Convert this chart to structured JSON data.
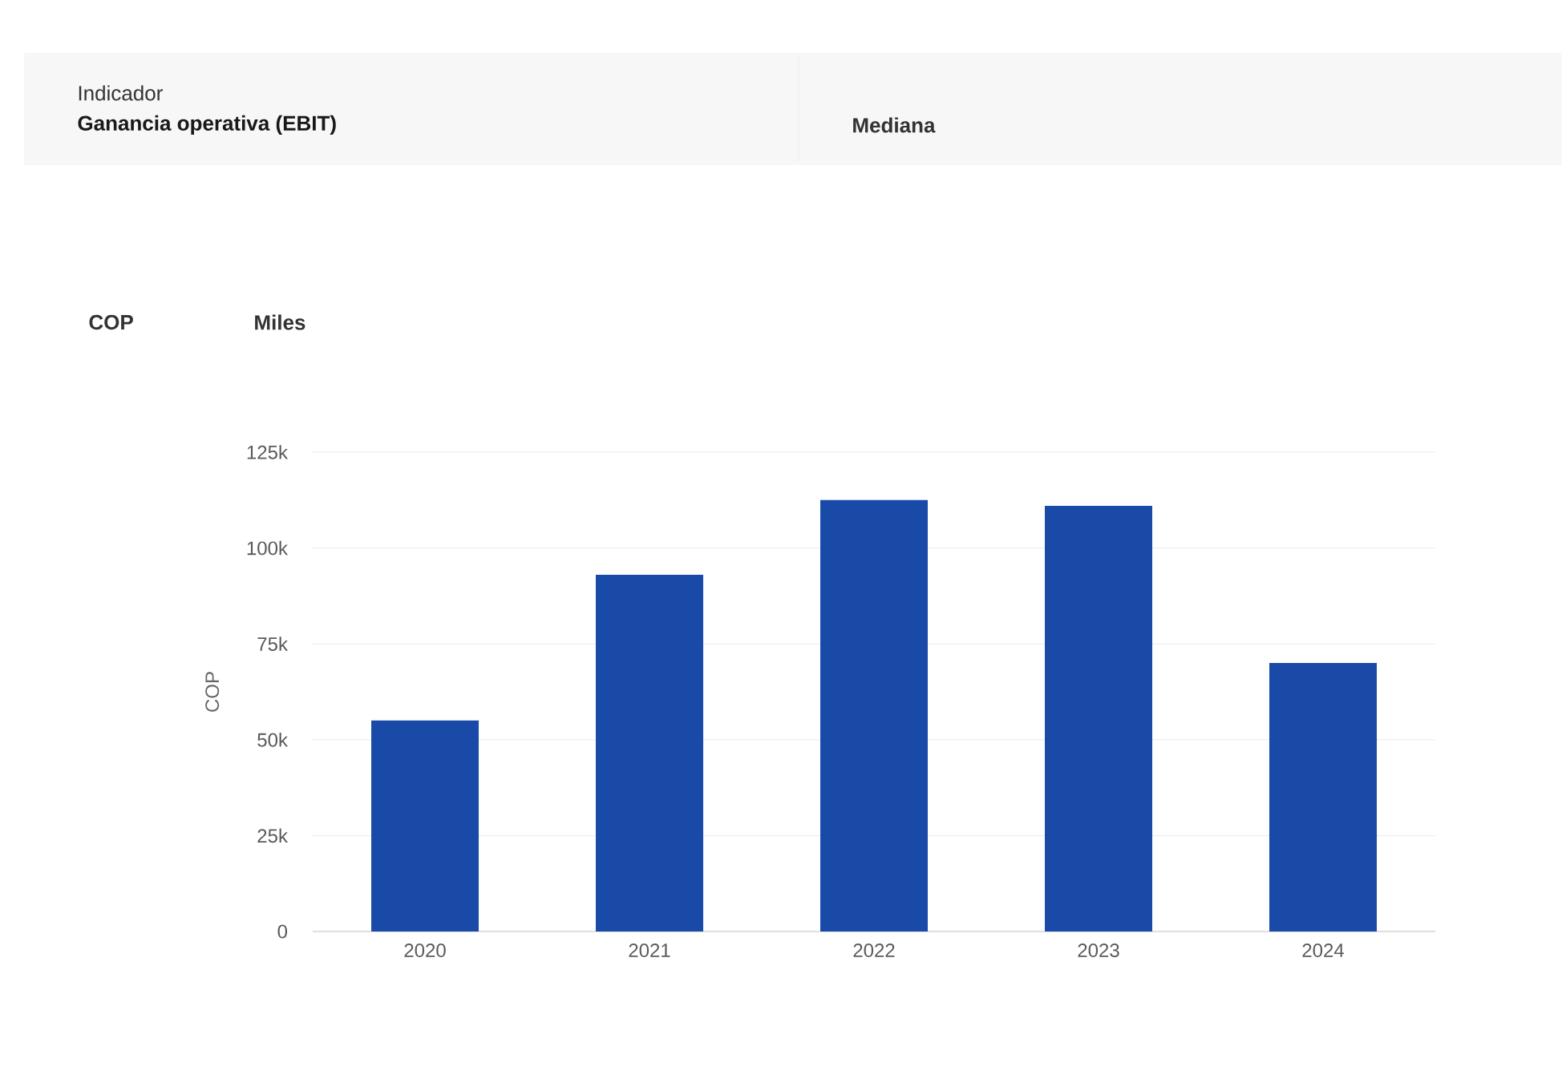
{
  "chart_data": {
    "type": "bar",
    "title": "Ganancia operativa (EBIT)",
    "annotations": [
      "Indicador",
      "Mediana",
      "COP",
      "Miles"
    ],
    "ylabel": "COP",
    "categories": [
      "2020",
      "2021",
      "2022",
      "2023",
      "2024"
    ],
    "values": [
      55000,
      93000,
      112500,
      111000,
      70000
    ],
    "color": "#1a4aa8",
    "ylim": [
      0,
      125000
    ],
    "yticks": [
      0,
      {
        "value": 25000,
        "label": "25k"
      },
      {
        "value": 50000,
        "label": "50k"
      },
      {
        "value": 75000,
        "label": "75k"
      },
      {
        "value": 100000,
        "label": "100k"
      },
      {
        "value": 125000,
        "label": "125k"
      }
    ],
    "grid": "y"
  }
}
